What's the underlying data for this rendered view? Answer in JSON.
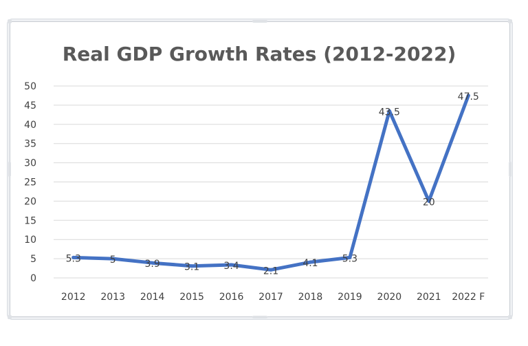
{
  "chart_data": {
    "type": "line",
    "title": "Real GDP Growth Rates (2012-2022)",
    "xlabel": "",
    "ylabel": "",
    "categories": [
      "2012",
      "2013",
      "2014",
      "2015",
      "2016",
      "2017",
      "2018",
      "2019",
      "2020",
      "2021",
      "2022 F"
    ],
    "series": [
      {
        "values": [
          5.3,
          5,
          3.9,
          3.1,
          3.4,
          2.1,
          4.1,
          5.3,
          43.5,
          20,
          47.5
        ],
        "data_labels": [
          "5.3",
          "5",
          "3.9",
          "3.1",
          "3.4",
          "2.1",
          "4.1",
          "5.3",
          "43.5",
          "20",
          "47.5"
        ],
        "color": "#4472c4"
      }
    ],
    "yticks": [
      "0",
      "5",
      "10",
      "15",
      "20",
      "25",
      "30",
      "35",
      "40",
      "45",
      "50"
    ],
    "ylim": [
      0,
      50
    ],
    "grid": true,
    "legend": "none"
  }
}
